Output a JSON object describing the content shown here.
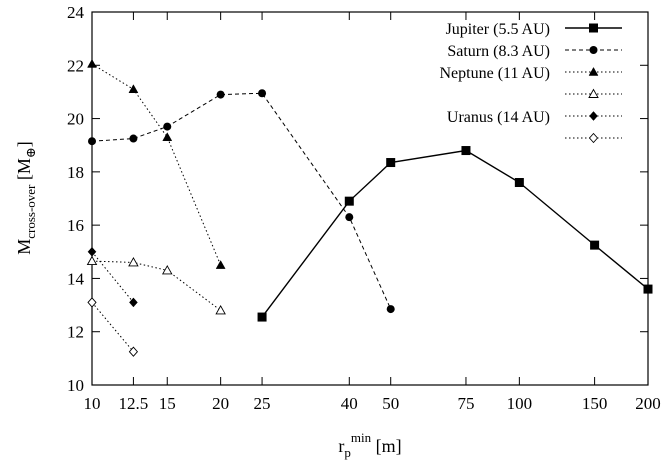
{
  "chart_data": {
    "type": "line",
    "title": "",
    "xlabel": {
      "base": "r",
      "sub": "p",
      "sup": "min",
      "unit": " [m]"
    },
    "ylabel": {
      "base": "M",
      "sub": "cross-over",
      "unit_prefix": " [M",
      "unit_sub": "⊕",
      "unit_suffix": "]"
    },
    "xscale": "log",
    "xlim": [
      10,
      200
    ],
    "ylim": [
      10,
      24
    ],
    "xticks": [
      10,
      12.5,
      15,
      20,
      25,
      40,
      50,
      75,
      100,
      150,
      200
    ],
    "xtick_labels": [
      "10",
      "12.5",
      "15",
      "20",
      "25",
      "40",
      "50",
      "75",
      "100",
      "150",
      "200"
    ],
    "yticks": [
      10,
      12,
      14,
      16,
      18,
      20,
      22,
      24
    ],
    "ytick_labels": [
      "10",
      "12",
      "14",
      "16",
      "18",
      "20",
      "22",
      "24"
    ],
    "grid": false,
    "legend_position": "top-right",
    "series": [
      {
        "name": "Jupiter (5.5 AU)",
        "marker": "filled-square",
        "dash": "solid",
        "x": [
          25,
          40,
          50,
          75,
          100,
          150,
          200
        ],
        "y": [
          12.55,
          16.9,
          18.35,
          18.8,
          17.6,
          15.25,
          13.6
        ]
      },
      {
        "name": "Saturn (8.3 AU)",
        "marker": "filled-circle",
        "dash": "dashed",
        "x": [
          10,
          12.5,
          15,
          20,
          25,
          40,
          50
        ],
        "y": [
          19.15,
          19.25,
          19.7,
          20.9,
          20.95,
          16.3,
          12.85
        ]
      },
      {
        "name": "Neptune (11 AU)",
        "marker": "filled-triangle",
        "dash": "dotted",
        "x": [
          10,
          12.5,
          15,
          20
        ],
        "y": [
          22.05,
          21.1,
          19.3,
          14.5
        ]
      },
      {
        "name": "",
        "marker": "open-triangle",
        "dash": "dotted",
        "x": [
          10,
          12.5,
          15,
          20
        ],
        "y": [
          14.65,
          14.6,
          14.3,
          12.8
        ]
      },
      {
        "name": "Uranus (14 AU)",
        "marker": "filled-diamond",
        "dash": "dotted",
        "x": [
          10,
          12.5
        ],
        "y": [
          15.0,
          13.1
        ]
      },
      {
        "name": "",
        "marker": "open-diamond",
        "dash": "dotted",
        "x": [
          10,
          12.5
        ],
        "y": [
          13.1,
          11.25
        ]
      }
    ]
  }
}
